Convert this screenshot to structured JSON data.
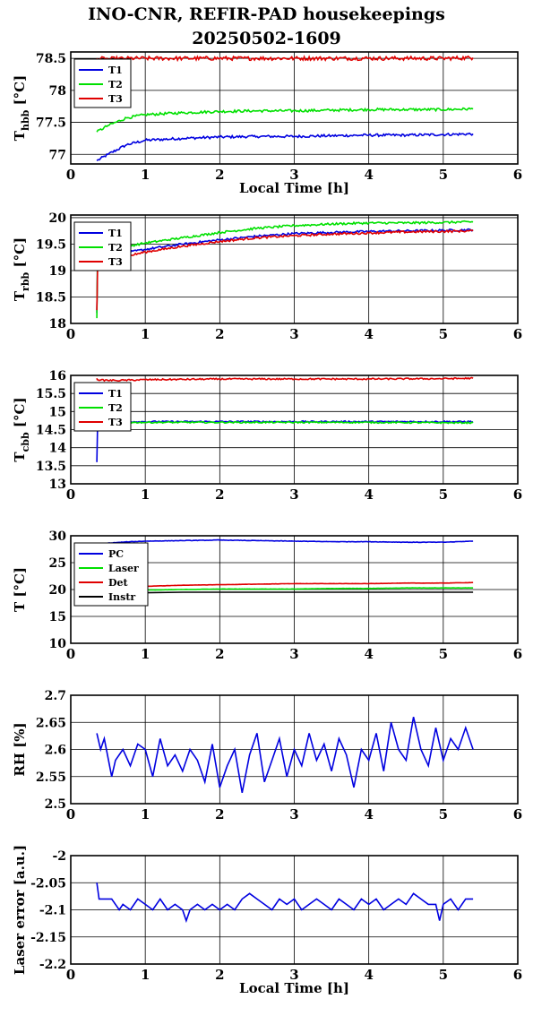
{
  "title_line1": "INO-CNR, REFIR-PAD housekeepings",
  "title_line2": "20250502-1609",
  "colors": {
    "blue": "#0000e0",
    "green": "#00e000",
    "red": "#e00000",
    "black": "#000000"
  },
  "chart_data": [
    {
      "type": "line",
      "ylabel_main": "T",
      "ylabel_sub": "hbb",
      "ylabel_rest": " [°C]",
      "xlabel": "Local Time [h]",
      "xlim": [
        0,
        6
      ],
      "ylim": [
        76.85,
        78.6
      ],
      "xticks": [
        "0",
        "1",
        "2",
        "3",
        "4",
        "5",
        "6"
      ],
      "yticks": [
        {
          "v": 77,
          "label": "77"
        },
        {
          "v": 77.5,
          "label": "77.5"
        },
        {
          "v": 78,
          "label": "78"
        },
        {
          "v": 78.5,
          "label": "78.5"
        }
      ],
      "grid": true,
      "legend": "top-left",
      "x": [
        0.35,
        0.5,
        0.75,
        1.0,
        1.5,
        2.0,
        2.5,
        3.0,
        3.5,
        4.0,
        4.5,
        5.0,
        5.4
      ],
      "series": [
        {
          "name": "T1",
          "color": "#0000e0",
          "noise": 0.02,
          "values": [
            76.9,
            77.0,
            77.15,
            77.22,
            77.25,
            77.27,
            77.28,
            77.28,
            77.29,
            77.3,
            77.3,
            77.31,
            77.32
          ]
        },
        {
          "name": "T2",
          "color": "#00e000",
          "noise": 0.02,
          "values": [
            77.35,
            77.45,
            77.57,
            77.62,
            77.65,
            77.67,
            77.68,
            77.68,
            77.69,
            77.7,
            77.7,
            77.7,
            77.71
          ]
        },
        {
          "name": "T3",
          "color": "#e00000",
          "noise": 0.03,
          "values": [
            78.5,
            78.49,
            78.5,
            78.5,
            78.5,
            78.5,
            78.5,
            78.5,
            78.5,
            78.5,
            78.5,
            78.5,
            78.51
          ]
        }
      ]
    },
    {
      "type": "line",
      "ylabel_main": "T",
      "ylabel_sub": "rbb",
      "ylabel_rest": " [°C]",
      "xlabel": "",
      "xlim": [
        0,
        6
      ],
      "ylim": [
        18,
        20.05
      ],
      "xticks": [
        "0",
        "1",
        "2",
        "3",
        "4",
        "5",
        "6"
      ],
      "yticks": [
        {
          "v": 18,
          "label": "18"
        },
        {
          "v": 18.5,
          "label": "18.5"
        },
        {
          "v": 19,
          "label": "19"
        },
        {
          "v": 19.5,
          "label": "19.5"
        },
        {
          "v": 20,
          "label": "20"
        }
      ],
      "grid": true,
      "legend": "top-left",
      "x": [
        0.35,
        0.36,
        0.4,
        0.6,
        1.0,
        1.5,
        2.0,
        2.5,
        3.0,
        3.5,
        4.0,
        4.5,
        5.0,
        5.4
      ],
      "series": [
        {
          "name": "T1",
          "color": "#0000e0",
          "noise": 0.02,
          "values": [
            18.2,
            19.2,
            19.25,
            19.3,
            19.4,
            19.5,
            19.58,
            19.65,
            19.7,
            19.72,
            19.74,
            19.75,
            19.76,
            19.77
          ]
        },
        {
          "name": "T2",
          "color": "#00e000",
          "noise": 0.02,
          "values": [
            18.1,
            19.3,
            19.35,
            19.42,
            19.52,
            19.62,
            19.72,
            19.8,
            19.85,
            19.88,
            19.9,
            19.9,
            19.91,
            19.92
          ]
        },
        {
          "name": "T3",
          "color": "#e00000",
          "noise": 0.02,
          "values": [
            18.25,
            19.0,
            19.15,
            19.22,
            19.35,
            19.46,
            19.55,
            19.62,
            19.66,
            19.69,
            19.71,
            19.73,
            19.74,
            19.75
          ]
        }
      ]
    },
    {
      "type": "line",
      "ylabel_main": "T",
      "ylabel_sub": "cbb",
      "ylabel_rest": " [°C]",
      "xlabel": "",
      "xlim": [
        0,
        6
      ],
      "ylim": [
        13,
        16
      ],
      "xticks": [
        "0",
        "1",
        "2",
        "3",
        "4",
        "5",
        "6"
      ],
      "yticks": [
        {
          "v": 13,
          "label": "13"
        },
        {
          "v": 13.5,
          "label": "13.5"
        },
        {
          "v": 14,
          "label": "14"
        },
        {
          "v": 14.5,
          "label": "14.5"
        },
        {
          "v": 15,
          "label": "15"
        },
        {
          "v": 15.5,
          "label": "15.5"
        },
        {
          "v": 16,
          "label": "16"
        }
      ],
      "grid": true,
      "legend": "top-left",
      "x": [
        0.35,
        0.36,
        0.4,
        0.6,
        1.0,
        2.0,
        3.0,
        4.0,
        5.0,
        5.4
      ],
      "series": [
        {
          "name": "T1",
          "color": "#0000e0",
          "noise": 0.02,
          "values": [
            13.6,
            14.6,
            14.7,
            14.72,
            14.72,
            14.72,
            14.72,
            14.72,
            14.72,
            14.72
          ]
        },
        {
          "name": "T2",
          "color": "#00e000",
          "noise": 0.02,
          "values": [
            14.6,
            14.65,
            14.68,
            14.7,
            14.7,
            14.7,
            14.7,
            14.7,
            14.69,
            14.69
          ]
        },
        {
          "name": "T3",
          "color": "#e00000",
          "noise": 0.02,
          "values": [
            15.92,
            15.88,
            15.87,
            15.86,
            15.88,
            15.9,
            15.9,
            15.9,
            15.91,
            15.92
          ]
        }
      ]
    },
    {
      "type": "line",
      "ylabel_main": "T [°C]",
      "ylabel_sub": "",
      "ylabel_rest": "",
      "xlabel": "",
      "xlim": [
        0,
        6
      ],
      "ylim": [
        10,
        30
      ],
      "xticks": [
        "0",
        "1",
        "2",
        "3",
        "4",
        "5",
        "6"
      ],
      "yticks": [
        {
          "v": 10,
          "label": "10"
        },
        {
          "v": 15,
          "label": "15"
        },
        {
          "v": 20,
          "label": "20"
        },
        {
          "v": 25,
          "label": "25"
        },
        {
          "v": 30,
          "label": "30"
        }
      ],
      "grid": true,
      "legend": "top-left",
      "x": [
        0.35,
        0.8,
        1.0,
        1.5,
        2.0,
        2.5,
        3.0,
        3.5,
        4.0,
        4.5,
        5.0,
        5.4
      ],
      "series": [
        {
          "name": "PC",
          "color": "#0000e0",
          "noise": 0.04,
          "values": [
            28.5,
            28.9,
            29.0,
            29.1,
            29.2,
            29.1,
            29.0,
            28.9,
            28.9,
            28.8,
            28.8,
            29.0
          ]
        },
        {
          "name": "Laser",
          "color": "#00e000",
          "noise": 0.02,
          "values": [
            19.6,
            19.7,
            19.9,
            20.0,
            20.1,
            20.1,
            20.1,
            20.2,
            20.2,
            20.3,
            20.3,
            20.3
          ]
        },
        {
          "name": "Det",
          "color": "#e00000",
          "noise": 0.02,
          "values": [
            20.3,
            20.4,
            20.6,
            20.8,
            20.9,
            21.0,
            21.1,
            21.1,
            21.1,
            21.2,
            21.2,
            21.3
          ]
        },
        {
          "name": "Instr",
          "color": "#000000",
          "noise": 0.0,
          "values": [
            19.2,
            19.3,
            19.4,
            19.5,
            19.5,
            19.5,
            19.5,
            19.5,
            19.5,
            19.5,
            19.5,
            19.5
          ]
        }
      ]
    },
    {
      "type": "line",
      "ylabel_main": "RH [%]",
      "ylabel_sub": "",
      "ylabel_rest": "",
      "xlabel": "",
      "xlim": [
        0,
        6
      ],
      "ylim": [
        2.5,
        2.7
      ],
      "xticks": [
        "0",
        "1",
        "2",
        "3",
        "4",
        "5",
        "6"
      ],
      "yticks": [
        {
          "v": 2.5,
          "label": "2.5"
        },
        {
          "v": 2.55,
          "label": "2.55"
        },
        {
          "v": 2.6,
          "label": "2.6"
        },
        {
          "v": 2.65,
          "label": "2.65"
        },
        {
          "v": 2.7,
          "label": "2.7"
        }
      ],
      "grid": true,
      "legend": "none",
      "x": [
        0.35,
        0.4,
        0.45,
        0.55,
        0.6,
        0.7,
        0.8,
        0.9,
        1.0,
        1.1,
        1.2,
        1.3,
        1.4,
        1.5,
        1.6,
        1.7,
        1.8,
        1.9,
        2.0,
        2.1,
        2.2,
        2.3,
        2.4,
        2.5,
        2.6,
        2.7,
        2.8,
        2.9,
        3.0,
        3.1,
        3.2,
        3.3,
        3.4,
        3.5,
        3.6,
        3.7,
        3.8,
        3.9,
        4.0,
        4.1,
        4.2,
        4.3,
        4.4,
        4.5,
        4.6,
        4.7,
        4.8,
        4.9,
        5.0,
        5.1,
        5.2,
        5.3,
        5.4
      ],
      "series": [
        {
          "name": "",
          "color": "#0000e0",
          "noise": 0,
          "values": [
            2.63,
            2.6,
            2.62,
            2.55,
            2.58,
            2.6,
            2.57,
            2.61,
            2.6,
            2.55,
            2.62,
            2.57,
            2.59,
            2.56,
            2.6,
            2.58,
            2.54,
            2.61,
            2.53,
            2.57,
            2.6,
            2.52,
            2.59,
            2.63,
            2.54,
            2.58,
            2.62,
            2.55,
            2.6,
            2.57,
            2.63,
            2.58,
            2.61,
            2.56,
            2.62,
            2.59,
            2.53,
            2.6,
            2.58,
            2.63,
            2.56,
            2.65,
            2.6,
            2.58,
            2.66,
            2.6,
            2.57,
            2.64,
            2.58,
            2.62,
            2.6,
            2.64,
            2.6
          ]
        }
      ]
    },
    {
      "type": "line",
      "ylabel_main": "Laser error [a.u.]",
      "ylabel_sub": "",
      "ylabel_rest": "",
      "xlabel": "Local Time [h]",
      "xlim": [
        0,
        6
      ],
      "ylim": [
        -2.2,
        -2.0
      ],
      "xticks": [
        "0",
        "1",
        "2",
        "3",
        "4",
        "5",
        "6"
      ],
      "yticks": [
        {
          "v": -2.2,
          "label": "-2.2"
        },
        {
          "v": -2.15,
          "label": "-2.15"
        },
        {
          "v": -2.1,
          "label": "-2.1"
        },
        {
          "v": -2.05,
          "label": "-2.05"
        },
        {
          "v": -2.0,
          "label": "-2"
        }
      ],
      "grid": true,
      "legend": "none",
      "x": [
        0.35,
        0.38,
        0.45,
        0.55,
        0.6,
        0.65,
        0.7,
        0.8,
        0.9,
        1.0,
        1.1,
        1.2,
        1.3,
        1.4,
        1.5,
        1.55,
        1.6,
        1.7,
        1.8,
        1.9,
        2.0,
        2.1,
        2.2,
        2.3,
        2.4,
        2.5,
        2.6,
        2.7,
        2.8,
        2.9,
        3.0,
        3.1,
        3.2,
        3.3,
        3.4,
        3.5,
        3.6,
        3.7,
        3.8,
        3.9,
        4.0,
        4.1,
        4.2,
        4.3,
        4.4,
        4.5,
        4.6,
        4.7,
        4.8,
        4.9,
        4.95,
        5.0,
        5.1,
        5.2,
        5.3,
        5.4
      ],
      "series": [
        {
          "name": "",
          "color": "#0000e0",
          "noise": 0,
          "values": [
            -2.05,
            -2.08,
            -2.08,
            -2.08,
            -2.09,
            -2.1,
            -2.09,
            -2.1,
            -2.08,
            -2.09,
            -2.1,
            -2.08,
            -2.1,
            -2.09,
            -2.1,
            -2.12,
            -2.1,
            -2.09,
            -2.1,
            -2.09,
            -2.1,
            -2.09,
            -2.1,
            -2.08,
            -2.07,
            -2.08,
            -2.09,
            -2.1,
            -2.08,
            -2.09,
            -2.08,
            -2.1,
            -2.09,
            -2.08,
            -2.09,
            -2.1,
            -2.08,
            -2.09,
            -2.1,
            -2.08,
            -2.09,
            -2.08,
            -2.1,
            -2.09,
            -2.08,
            -2.09,
            -2.07,
            -2.08,
            -2.09,
            -2.09,
            -2.12,
            -2.09,
            -2.08,
            -2.1,
            -2.08,
            -2.08
          ]
        }
      ]
    }
  ]
}
